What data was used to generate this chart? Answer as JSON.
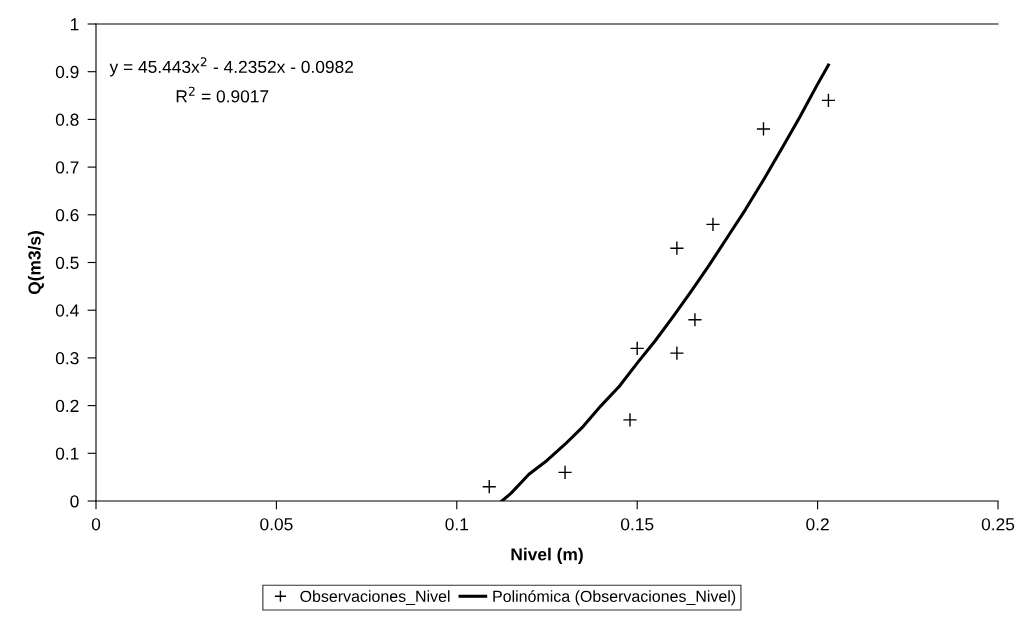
{
  "chart_data": {
    "type": "scatter",
    "xlabel": "Nivel (m)",
    "ylabel": "Q(m3/s)",
    "xlim": [
      0,
      0.25
    ],
    "xticks": [
      0,
      0.05,
      0.1,
      0.15,
      0.2,
      0.25
    ],
    "ylim": [
      0,
      1
    ],
    "yticks": [
      0,
      0.1,
      0.2,
      0.3,
      0.4,
      0.5,
      0.6,
      0.7,
      0.8,
      0.9,
      1
    ],
    "grid": false,
    "legend": "bottom",
    "annotations": [
      "y = 45.443x$^{2}$ - 4.2352x - 0.0982",
      "R$^{2}$ = 0.9017"
    ],
    "series": [
      {
        "name": "Observaciones_Nivel",
        "marker": "cross",
        "color": "#000000",
        "x": [
          0.109,
          0.13,
          0.148,
          0.15,
          0.161,
          0.161,
          0.166,
          0.171,
          0.185,
          0.203
        ],
        "values": [
          0.03,
          0.06,
          0.17,
          0.32,
          0.31,
          0.53,
          0.38,
          0.58,
          0.78,
          0.84
        ]
      },
      {
        "name": "Polinómica (Observaciones_Nivel)",
        "type": "line",
        "marker": "none",
        "color": "#000000",
        "line_style": "solid",
        "x": [
          0.1125,
          0.115,
          0.12,
          0.125,
          0.13,
          0.135,
          0.14,
          0.145,
          0.15,
          0.155,
          0.16,
          0.165,
          0.17,
          0.175,
          0.18,
          0.185,
          0.19,
          0.195,
          0.2,
          0.203
        ],
        "values": [
          0,
          0.016,
          0.056,
          0.085,
          0.119,
          0.156,
          0.2,
          0.24,
          0.289,
          0.336,
          0.387,
          0.44,
          0.495,
          0.553,
          0.611,
          0.673,
          0.738,
          0.804,
          0.874,
          0.914
        ]
      }
    ]
  }
}
